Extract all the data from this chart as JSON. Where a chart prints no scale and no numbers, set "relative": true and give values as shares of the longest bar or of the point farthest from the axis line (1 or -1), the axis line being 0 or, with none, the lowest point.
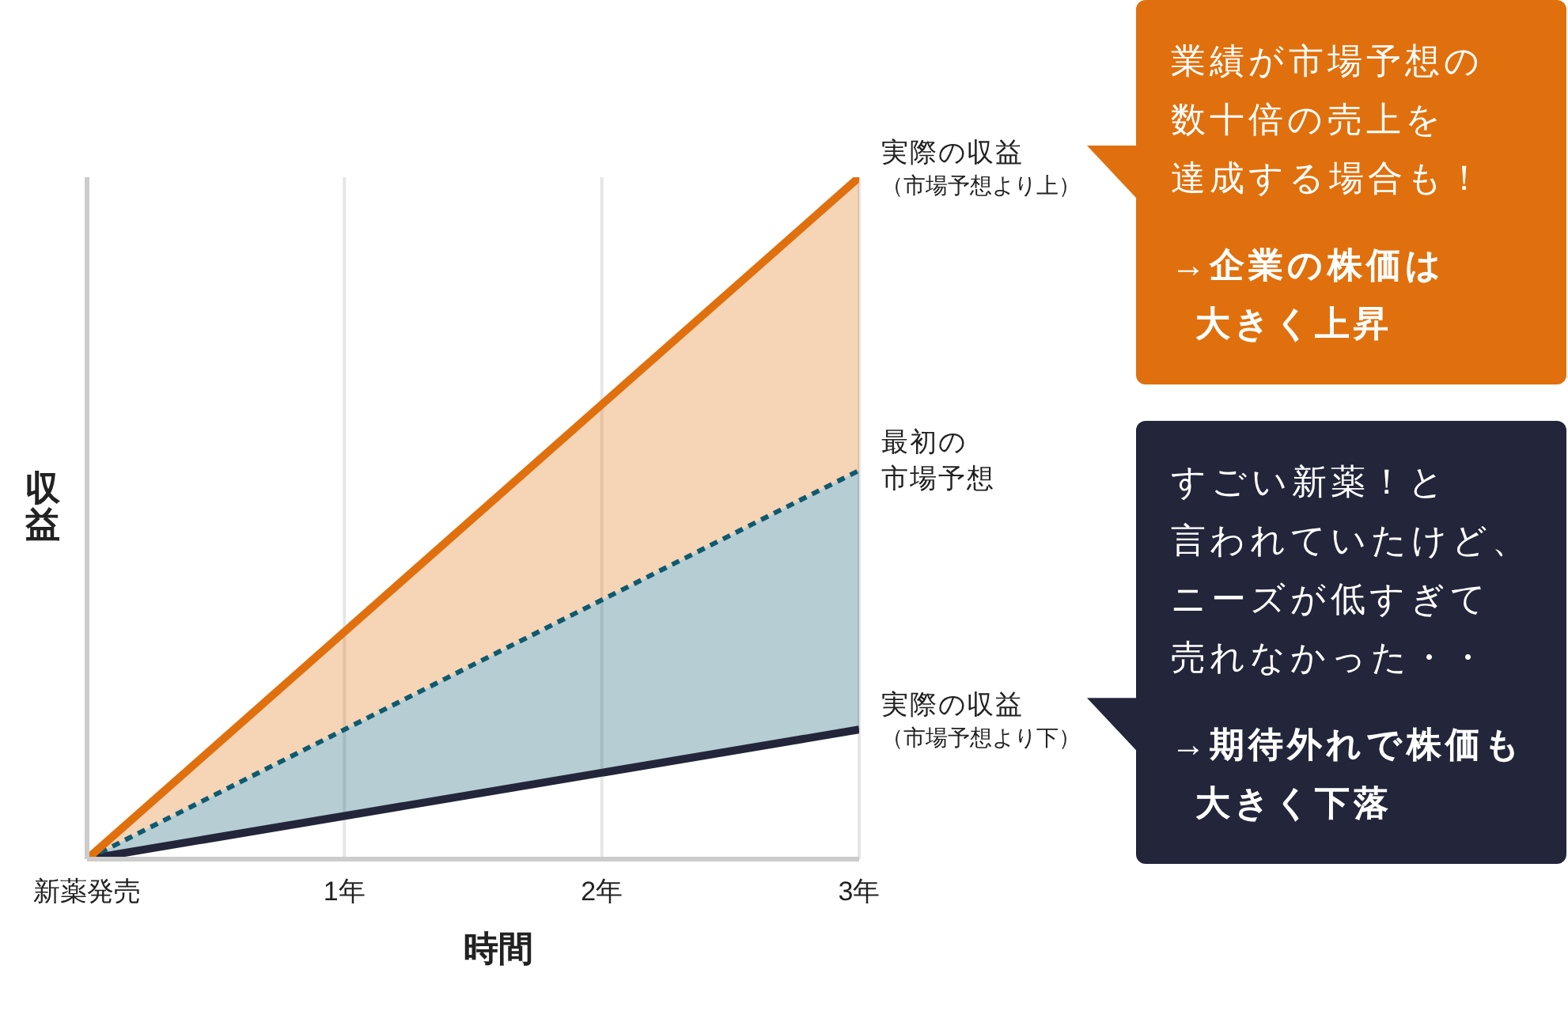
{
  "chart_data": {
    "type": "line",
    "relative": true,
    "xlabel": "時間",
    "ylabel": "収益",
    "x": [
      0,
      3
    ],
    "xlim": [
      0,
      3
    ],
    "xticks": [
      {
        "value": 0,
        "label": "新薬発売"
      },
      {
        "value": 1,
        "label": "1年"
      },
      {
        "value": 2,
        "label": "2年"
      },
      {
        "value": 3,
        "label": "3年"
      }
    ],
    "series": [
      {
        "name": "実際の収益",
        "color": "#e0700d",
        "values": [
          0,
          1
        ],
        "lower": [
          0,
          0.57
        ],
        "upper": [
          0,
          1
        ],
        "line_style": "solid"
      },
      {
        "name": "最初の市場予想",
        "color": "#0e5a6e",
        "values": [
          0,
          0.57
        ],
        "lower": [
          0,
          0.19
        ],
        "upper": [
          0,
          0.57
        ],
        "line_style": "dotted"
      },
      {
        "name": "実際の収益",
        "color": "#23263a",
        "values": [
          0,
          0.19
        ],
        "line_style": "solid"
      }
    ],
    "grid": "x",
    "marker": "none",
    "annotations": [
      {
        "text": "（市場予想より上）",
        "x": 3,
        "y": 1
      },
      {
        "text": "（市場予想より下）",
        "x": 3,
        "y": 0.19
      },
      "業績が市場予想の数十倍の売上を達成する場合も！",
      "→企業の株価は大きく上昇",
      "すごい新薬！と言われていたけど、ニーズが低すぎて売れなかった・・",
      "→期待外れで株価も大きく下落"
    ]
  }
}
